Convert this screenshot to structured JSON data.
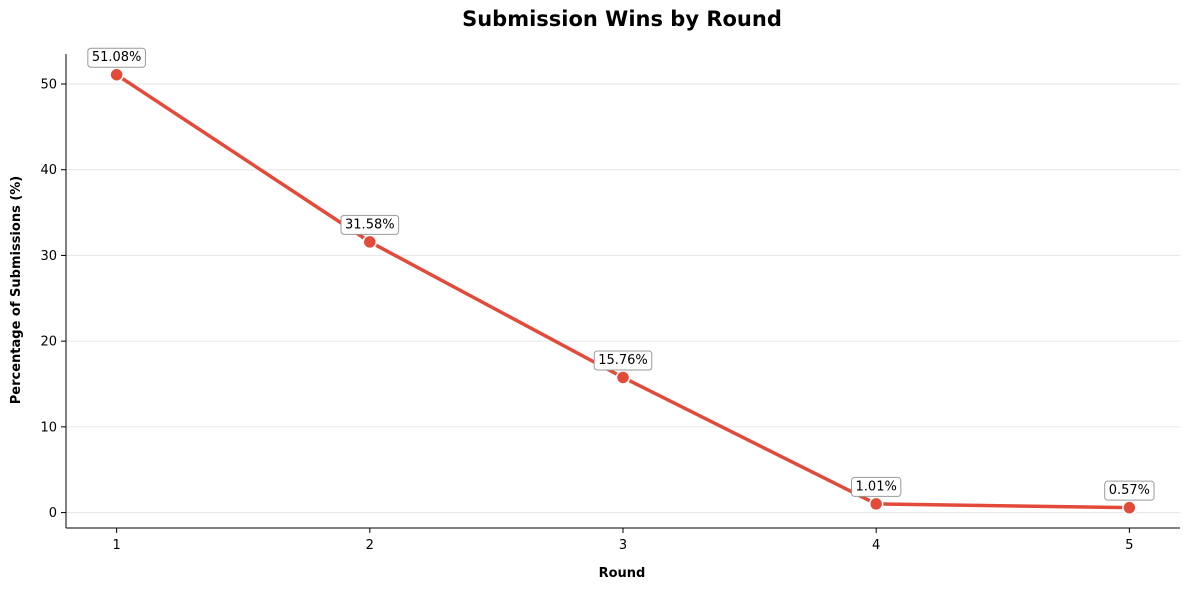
{
  "chart_data": {
    "type": "line",
    "title": "Submission Wins by Round",
    "xlabel": "Round",
    "ylabel": "Percentage of Submissions (%)",
    "x": [
      1,
      2,
      3,
      4,
      5
    ],
    "values": [
      51.08,
      31.58,
      15.76,
      1.01,
      0.57
    ],
    "data_labels": [
      "51.08%",
      "31.58%",
      "15.76%",
      "1.01%",
      "0.57%"
    ],
    "x_ticks": [
      "1",
      "2",
      "3",
      "4",
      "5"
    ],
    "y_ticks": [
      0,
      10,
      20,
      30,
      40,
      50
    ],
    "xlim": [
      0.8,
      5.2
    ],
    "ylim": [
      -1.8,
      53.5
    ],
    "grid": "horizontal",
    "line_color": "#e34a3a",
    "marker_edge_color": "#ffffff"
  }
}
